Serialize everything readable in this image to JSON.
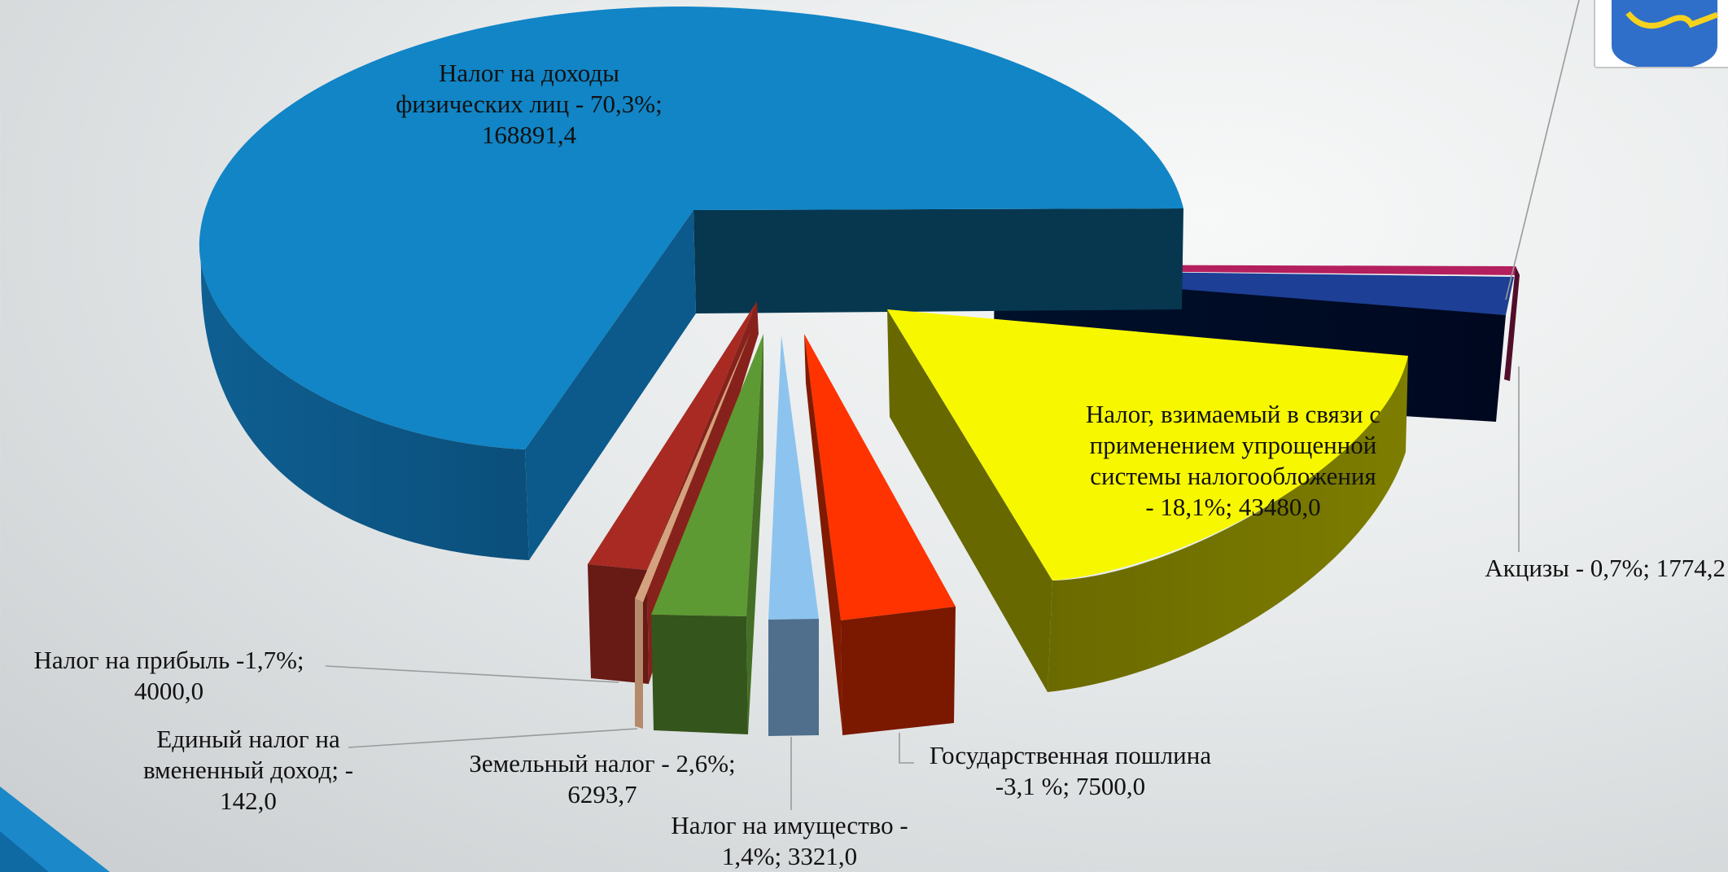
{
  "chart_data": {
    "type": "pie",
    "style": "3d-exploded",
    "title": "",
    "slices": [
      {
        "key": "ndfl",
        "label": "Налог на доходы физических лиц - 70,3%; 168891,4",
        "label_lines": [
          "Налог на доходы",
          "физических лиц - 70,3%;",
          "168891,4"
        ],
        "percent": 70.3,
        "value": 168891.4,
        "color": "#1185c6"
      },
      {
        "key": "usn",
        "label": "Налог, взимаемый в связи с применением упрощенной системы налогообложения - 18,1%; 43480,0",
        "label_lines": [
          "Налог, взимаемый в связи с",
          "применением упрощенной",
          "системы налогообложения",
          "- 18,1%; 43480,0"
        ],
        "percent": 18.1,
        "value": 43480.0,
        "color": "#f7f700"
      },
      {
        "key": "akcizy",
        "label": "Акцизы - 0,7%; 1774,2",
        "label_lines": [
          "Акцизы - 0,7%; 1774,2"
        ],
        "percent": 0.7,
        "value": 1774.2,
        "color": "#b41f5d"
      },
      {
        "key": "poshlina",
        "label": "Государственная пошлина -3,1 %; 7500,0",
        "label_lines": [
          "Государственная пошлина",
          "-3,1 %; 7500,0"
        ],
        "percent": 3.1,
        "value": 7500.0,
        "color": "#ff3300"
      },
      {
        "key": "imushchestvo",
        "label": "Налог на имущество - 1,4%; 3321,0",
        "label_lines": [
          "Налог на имущество -",
          "1,4%; 3321,0"
        ],
        "percent": 1.4,
        "value": 3321.0,
        "color": "#8cc4ef"
      },
      {
        "key": "zemelny",
        "label": "Земельный налог - 2,6%; 6293,7",
        "label_lines": [
          "Земельный налог - 2,6%;",
          "6293,7"
        ],
        "percent": 2.6,
        "value": 6293.7,
        "color": "#5e9a33"
      },
      {
        "key": "envd",
        "label": "Единый налог на вмененный доход; -142,0",
        "label_lines": [
          "Единый налог на",
          "вмененный доход; -",
          "142,0"
        ],
        "value": -142.0,
        "color": "#d4a27e"
      },
      {
        "key": "pribyl",
        "label": "Налог на прибыль -1,7%; 4000,0",
        "label_lines": [
          "Налог на  прибыль -1,7%;",
          "4000,0"
        ],
        "percent": 1.7,
        "value": 4000.0,
        "color": "#a82a22"
      }
    ],
    "hidden_slice_colors": [
      "#1d3f95"
    ],
    "legend": "none"
  },
  "decor": {
    "corner_color": "#1b88c9",
    "emblem_icon": "coat-of-arms-icon",
    "emblem_color": "#2f6fc9",
    "emblem_accent": "#f5d21e"
  }
}
